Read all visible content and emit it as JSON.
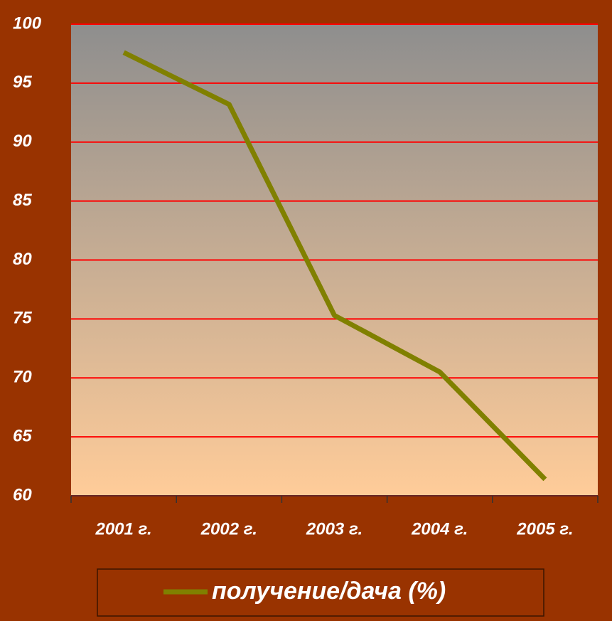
{
  "chart_data": {
    "type": "line",
    "categories": [
      "2001 г.",
      "2002 г.",
      "2003 г.",
      "2004 г.",
      "2005 г."
    ],
    "series": [
      {
        "name": "получение/дача (%)",
        "color": "#808000",
        "values": [
          97.6,
          93.2,
          75.3,
          70.5,
          61.4
        ]
      }
    ],
    "ylim": [
      60,
      100
    ],
    "yticks": [
      60,
      65,
      70,
      75,
      80,
      85,
      90,
      95,
      100
    ],
    "grid": true,
    "grid_color": "#ff0000",
    "legend": "bottom"
  }
}
